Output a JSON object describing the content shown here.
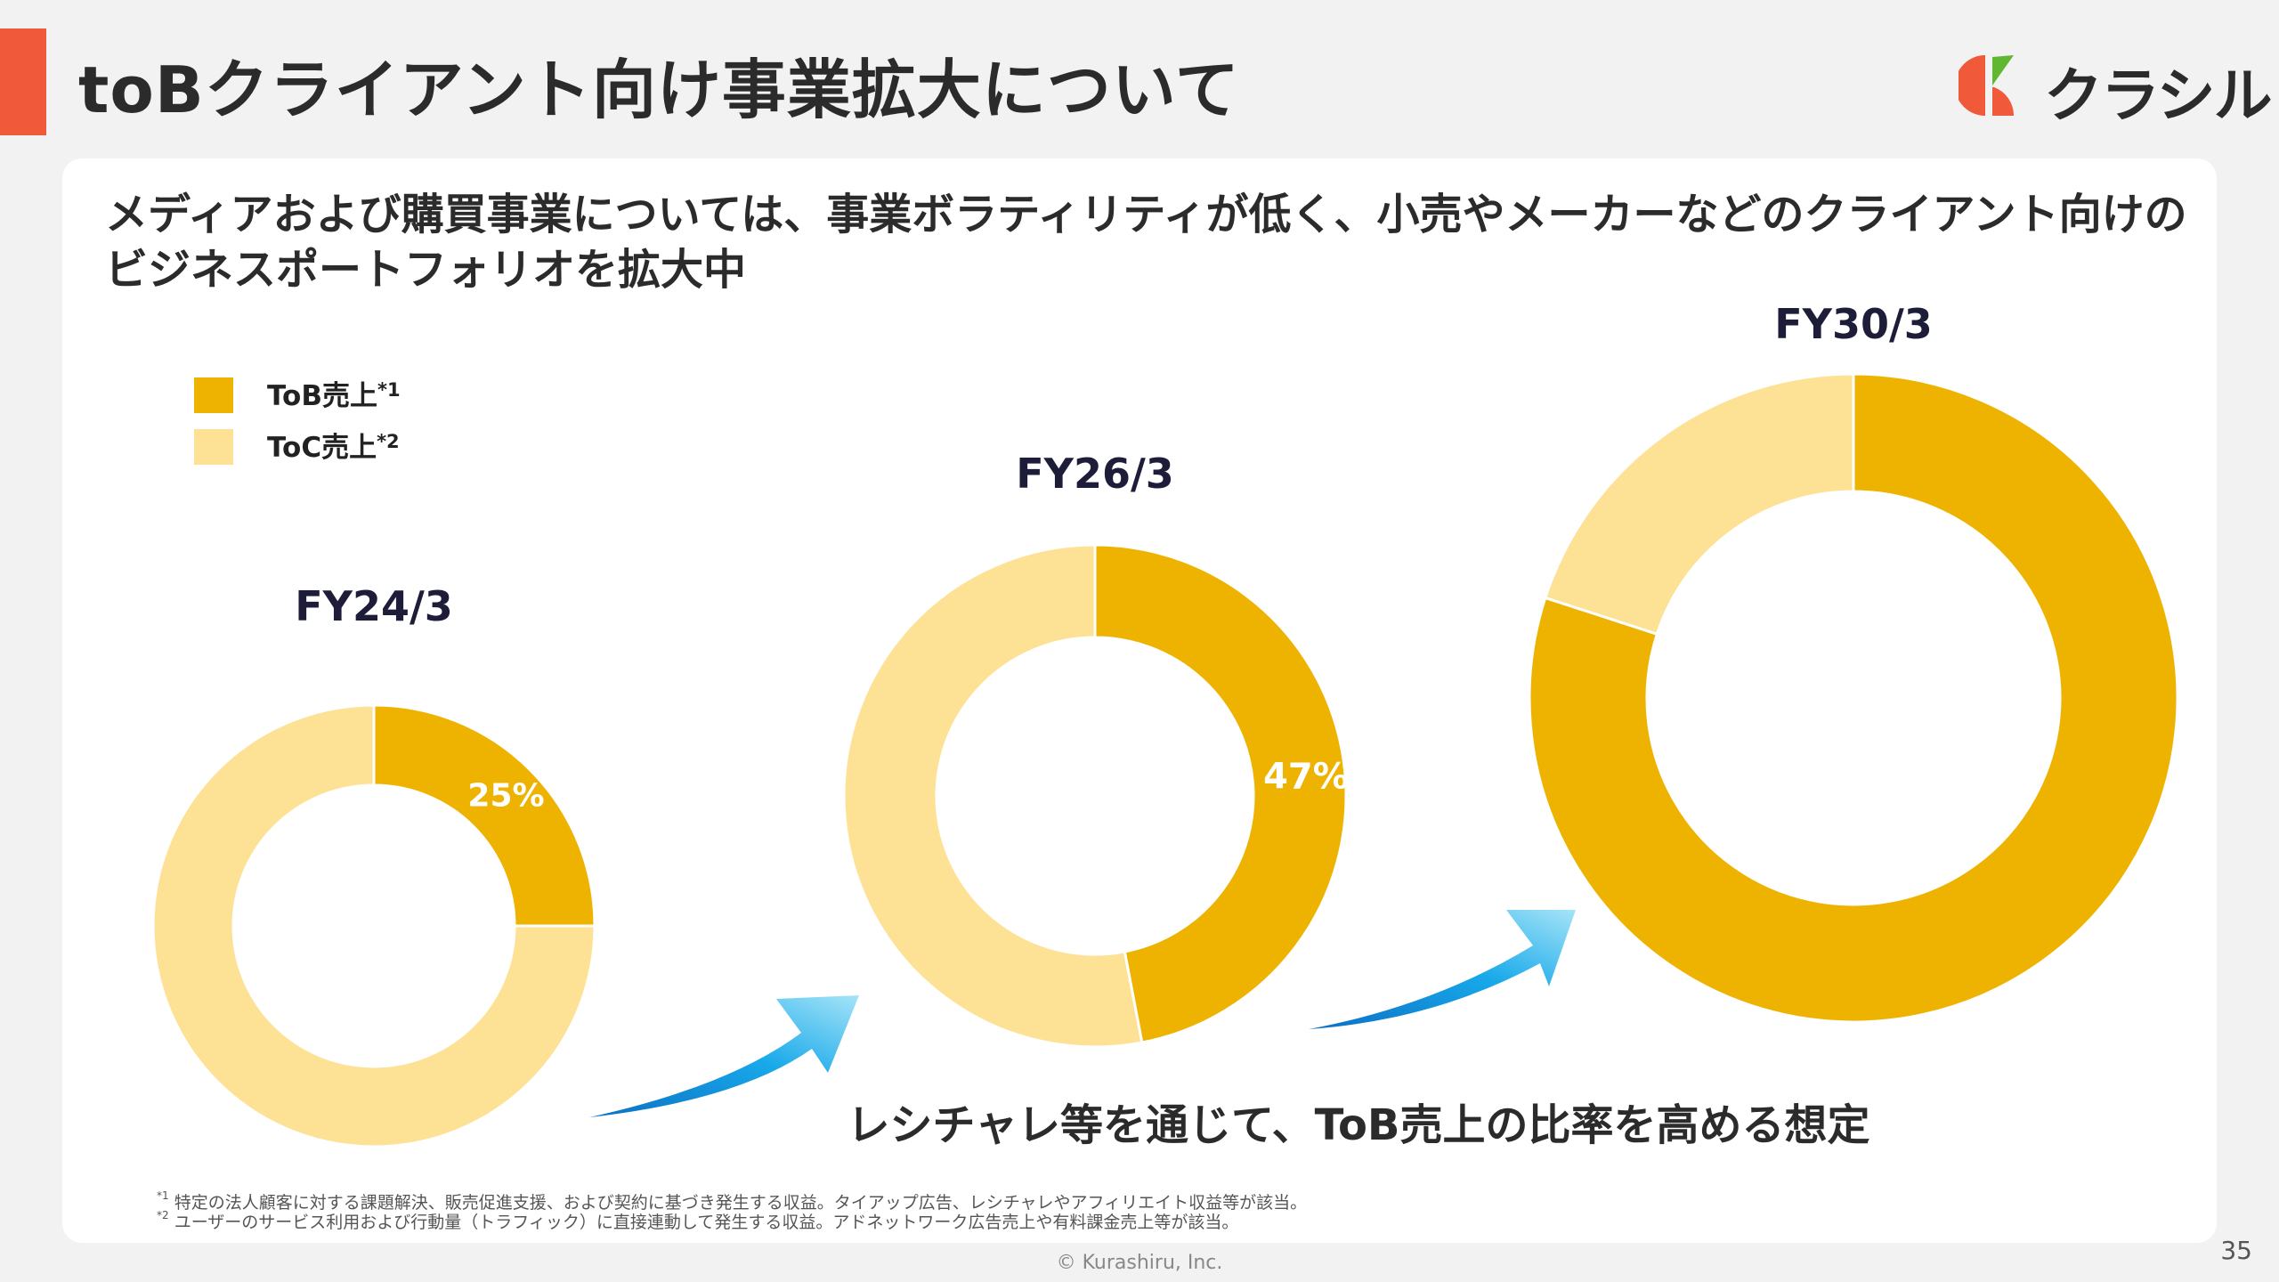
{
  "header": {
    "title": "toBクライアント向け事業拡大について",
    "logo_text": "クラシル"
  },
  "lead_text": "メディアおよび購買事業については、事業ボラティリティが低く、小売やメーカーなどのクライアント向けのビジネスポートフォリオを拡大中",
  "chart_data": {
    "type": "pie",
    "style": "donut",
    "legend": {
      "placement": "top-left",
      "entries": [
        {
          "label": "ToB売上",
          "note_mark": "*1",
          "color": "#eeb300"
        },
        {
          "label": "ToC売上",
          "note_mark": "*2",
          "color": "#fde194"
        }
      ]
    },
    "charts": [
      {
        "title": "FY24/3",
        "tob_share": 0.25,
        "toc_share": 0.75,
        "data_label": "25%"
      },
      {
        "title": "FY26/3",
        "tob_share": 0.47,
        "toc_share": 0.53,
        "data_label": "47%"
      },
      {
        "title": "FY30/3",
        "tob_share": 0.8,
        "toc_share": 0.2,
        "data_label": ""
      }
    ],
    "annotation": "レシチャレ等を通じて、ToB売上の比率を高める想定"
  },
  "footnotes": [
    {
      "mark": "*1",
      "text": "特定の法人顧客に対する課題解決、販売促進支援、および契約に基づき発生する収益。タイアップ広告、レシチャレやアフィリエイト収益等が該当。"
    },
    {
      "mark": "*2",
      "text": "ユーザーのサービス利用および行動量（トラフィック）に直接連動して発生する収益。アドネットワーク広告売上や有料課金売上等が該当。"
    }
  ],
  "footer": {
    "copyright": "© Kurashiru, Inc.",
    "page_number": "35"
  }
}
